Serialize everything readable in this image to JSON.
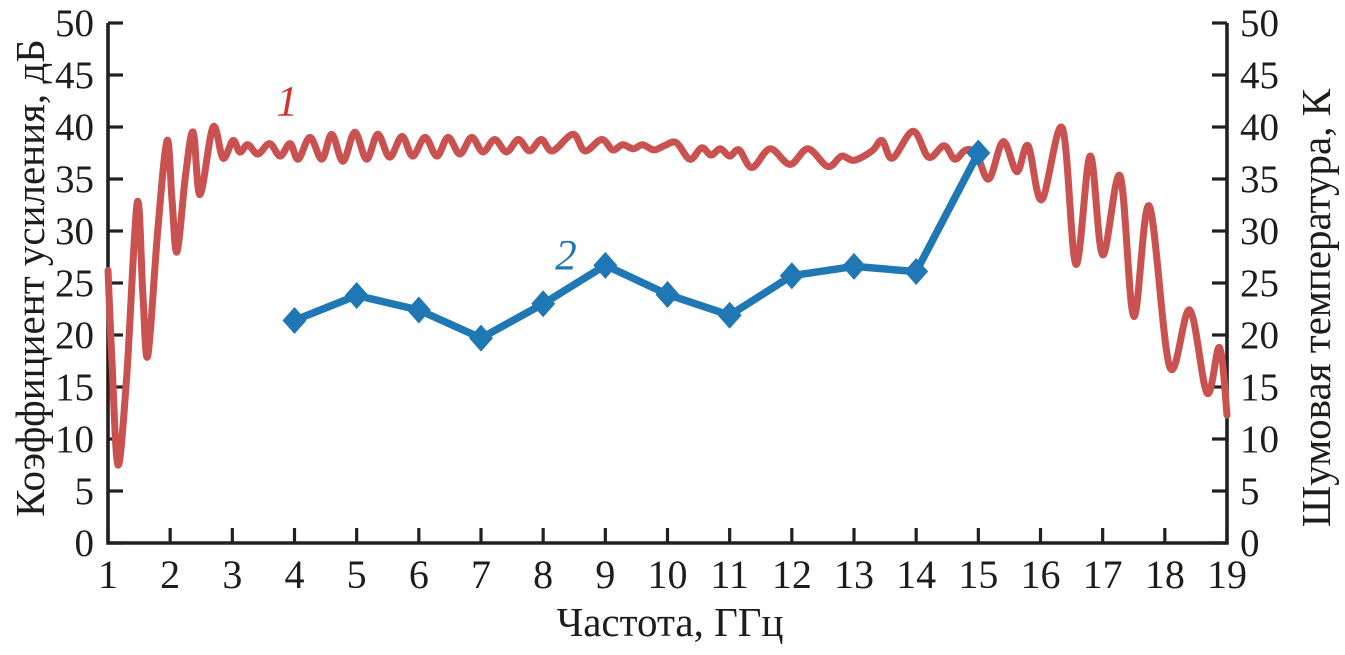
{
  "chart_data": {
    "type": "line",
    "title": "",
    "xlabel": "Частота, ГГц",
    "ylabel_left": "Коэффициент усиления, дБ",
    "ylabel_right": "Шумовая температура, К",
    "xlim": [
      1,
      19
    ],
    "ylim_left": [
      0,
      50
    ],
    "ylim_right": [
      0,
      50
    ],
    "x_ticks": [
      1,
      2,
      3,
      4,
      5,
      6,
      7,
      8,
      9,
      10,
      11,
      12,
      13,
      14,
      15,
      16,
      17,
      18,
      19
    ],
    "y_ticks_left": [
      0,
      5,
      10,
      15,
      20,
      25,
      30,
      35,
      40,
      45,
      50
    ],
    "y_ticks_right": [
      0,
      5,
      10,
      15,
      20,
      25,
      30,
      35,
      40,
      45,
      50
    ],
    "grid": false,
    "legend_position": "none",
    "axis_color": "#231f20",
    "series": [
      {
        "name": "Коэффициент усиления (кривая 1)",
        "label": "1",
        "axis": "left",
        "style": "smooth-line",
        "color": "#c9514f",
        "points": [
          [
            1.0,
            26.2
          ],
          [
            1.06,
            18.0
          ],
          [
            1.16,
            7.5
          ],
          [
            1.3,
            16.0
          ],
          [
            1.47,
            32.7
          ],
          [
            1.56,
            24.0
          ],
          [
            1.64,
            18.0
          ],
          [
            1.8,
            30.0
          ],
          [
            1.95,
            38.7
          ],
          [
            2.03,
            33.0
          ],
          [
            2.11,
            28.0
          ],
          [
            2.25,
            35.5
          ],
          [
            2.37,
            39.5
          ],
          [
            2.48,
            33.5
          ],
          [
            2.69,
            40.0
          ],
          [
            2.85,
            37.0
          ],
          [
            3.01,
            38.7
          ],
          [
            3.12,
            37.6
          ],
          [
            3.25,
            38.3
          ],
          [
            3.41,
            37.4
          ],
          [
            3.6,
            38.4
          ],
          [
            3.77,
            37.2
          ],
          [
            3.93,
            38.4
          ],
          [
            4.06,
            36.9
          ],
          [
            4.25,
            39.0
          ],
          [
            4.44,
            36.9
          ],
          [
            4.6,
            39.3
          ],
          [
            4.78,
            36.7
          ],
          [
            4.97,
            39.5
          ],
          [
            5.16,
            36.9
          ],
          [
            5.34,
            39.3
          ],
          [
            5.53,
            37.1
          ],
          [
            5.73,
            39.1
          ],
          [
            5.9,
            37.2
          ],
          [
            6.1,
            39.0
          ],
          [
            6.29,
            37.2
          ],
          [
            6.47,
            39.0
          ],
          [
            6.66,
            37.4
          ],
          [
            6.85,
            39.0
          ],
          [
            7.03,
            37.6
          ],
          [
            7.22,
            38.8
          ],
          [
            7.41,
            37.6
          ],
          [
            7.6,
            38.8
          ],
          [
            7.78,
            37.7
          ],
          [
            7.97,
            38.8
          ],
          [
            8.15,
            37.7
          ],
          [
            8.48,
            39.3
          ],
          [
            8.67,
            37.7
          ],
          [
            8.94,
            38.8
          ],
          [
            9.12,
            37.8
          ],
          [
            9.28,
            38.3
          ],
          [
            9.45,
            37.9
          ],
          [
            9.6,
            38.3
          ],
          [
            9.78,
            37.8
          ],
          [
            9.95,
            38.2
          ],
          [
            10.14,
            38.5
          ],
          [
            10.36,
            36.9
          ],
          [
            10.55,
            38.0
          ],
          [
            10.7,
            37.3
          ],
          [
            10.85,
            37.9
          ],
          [
            11.0,
            37.2
          ],
          [
            11.15,
            37.8
          ],
          [
            11.36,
            36.1
          ],
          [
            11.65,
            37.9
          ],
          [
            11.97,
            36.4
          ],
          [
            12.26,
            37.9
          ],
          [
            12.58,
            36.2
          ],
          [
            12.8,
            37.2
          ],
          [
            13.0,
            36.8
          ],
          [
            13.29,
            37.7
          ],
          [
            13.45,
            38.7
          ],
          [
            13.62,
            37.0
          ],
          [
            13.95,
            39.6
          ],
          [
            14.2,
            37.1
          ],
          [
            14.45,
            38.2
          ],
          [
            14.62,
            36.9
          ],
          [
            14.8,
            37.8
          ],
          [
            14.97,
            37.4
          ],
          [
            15.17,
            35.0
          ],
          [
            15.4,
            38.6
          ],
          [
            15.62,
            35.7
          ],
          [
            15.8,
            38.2
          ],
          [
            16.02,
            33.0
          ],
          [
            16.35,
            39.9
          ],
          [
            16.57,
            26.8
          ],
          [
            16.8,
            37.2
          ],
          [
            17.0,
            27.7
          ],
          [
            17.28,
            35.3
          ],
          [
            17.5,
            21.8
          ],
          [
            17.75,
            32.4
          ],
          [
            18.08,
            16.9
          ],
          [
            18.4,
            22.4
          ],
          [
            18.68,
            14.4
          ],
          [
            18.88,
            18.8
          ],
          [
            19.0,
            12.3
          ]
        ]
      },
      {
        "name": "Шумовая температура (кривая 2)",
        "label": "2",
        "axis": "right",
        "style": "line-markers",
        "marker": "diamond",
        "color": "#1f77b4",
        "x": [
          4,
          5,
          6,
          7,
          8,
          9,
          10,
          11,
          12,
          13,
          14,
          15
        ],
        "values": [
          21.4,
          23.8,
          22.4,
          19.7,
          23.0,
          26.7,
          23.9,
          21.9,
          25.7,
          26.6,
          26.1,
          37.5
        ]
      }
    ],
    "annotations": [
      {
        "text": "1",
        "x_ghz": 3.9,
        "y_value": 42.3,
        "color": "#d3312d"
      },
      {
        "text": "2",
        "x_ghz": 8.4,
        "y_value": 27.6,
        "color": "#1f77b4"
      }
    ]
  }
}
